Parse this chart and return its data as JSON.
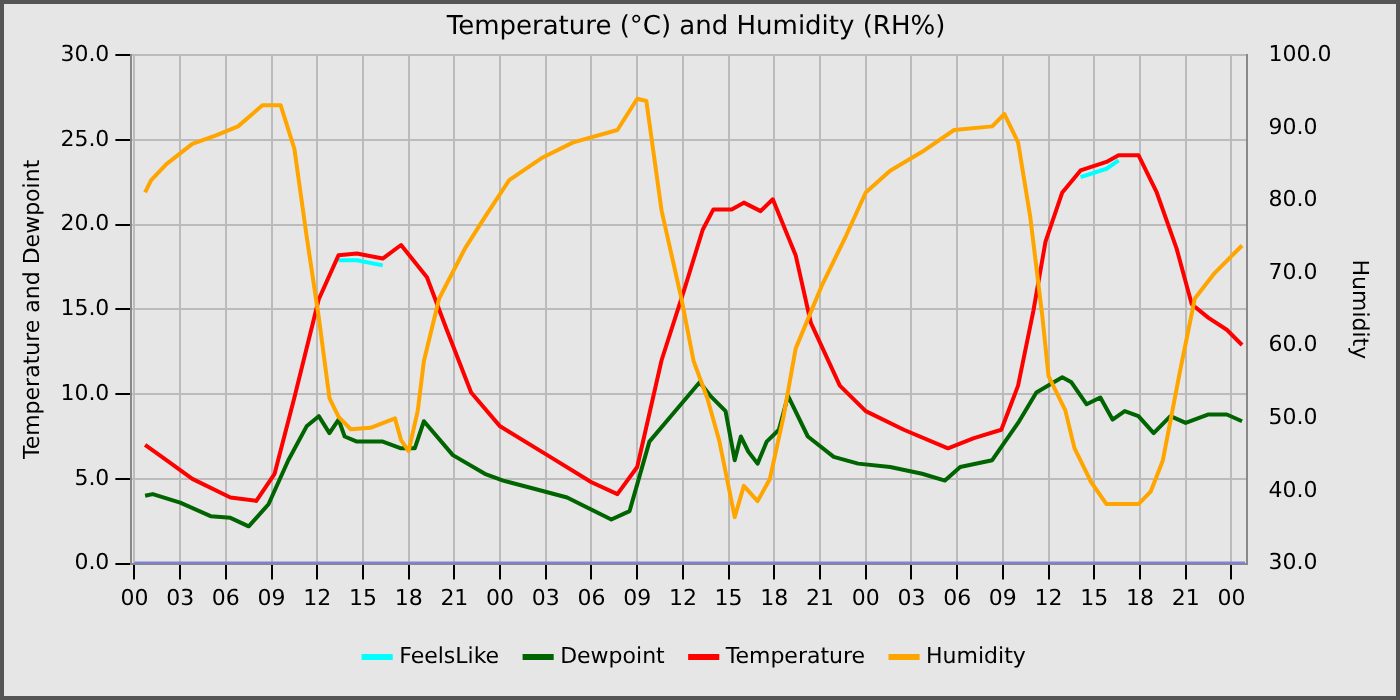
{
  "chart_data": {
    "type": "line",
    "title": "Temperature (°C) and Humidity (RH%)",
    "ylabel": "Temperature and Dewpoint",
    "y2label": "Humidity",
    "xlim": [
      -0.2,
      73
    ],
    "xticks": [
      {
        "value": 0,
        "label": "00"
      },
      {
        "value": 3,
        "label": "03"
      },
      {
        "value": 6,
        "label": "06"
      },
      {
        "value": 9,
        "label": "09"
      },
      {
        "value": 12,
        "label": "12"
      },
      {
        "value": 15,
        "label": "15"
      },
      {
        "value": 18,
        "label": "18"
      },
      {
        "value": 21,
        "label": "21"
      },
      {
        "value": 24,
        "label": "00"
      },
      {
        "value": 27,
        "label": "03"
      },
      {
        "value": 30,
        "label": "06"
      },
      {
        "value": 33,
        "label": "09"
      },
      {
        "value": 36,
        "label": "12"
      },
      {
        "value": 39,
        "label": "15"
      },
      {
        "value": 42,
        "label": "18"
      },
      {
        "value": 45,
        "label": "21"
      },
      {
        "value": 48,
        "label": "00"
      },
      {
        "value": 51,
        "label": "03"
      },
      {
        "value": 54,
        "label": "06"
      },
      {
        "value": 57,
        "label": "09"
      },
      {
        "value": 60,
        "label": "12"
      },
      {
        "value": 63,
        "label": "15"
      },
      {
        "value": 66,
        "label": "18"
      },
      {
        "value": 69,
        "label": "21"
      },
      {
        "value": 72,
        "label": "00"
      }
    ],
    "ylim": [
      0,
      30
    ],
    "yticks": [
      {
        "value": 0,
        "label": "0.0"
      },
      {
        "value": 5,
        "label": "5.0"
      },
      {
        "value": 10,
        "label": "10.0"
      },
      {
        "value": 15,
        "label": "15.0"
      },
      {
        "value": 20,
        "label": "20.0"
      },
      {
        "value": 25,
        "label": "25.0"
      },
      {
        "value": 30,
        "label": "30.0"
      }
    ],
    "y2lim": [
      30,
      100
    ],
    "y2ticks": [
      {
        "value": 30,
        "label": "30.0"
      },
      {
        "value": 40,
        "label": "40.0"
      },
      {
        "value": 50,
        "label": "50.0"
      },
      {
        "value": 60,
        "label": "60.0"
      },
      {
        "value": 70,
        "label": "70.0"
      },
      {
        "value": 80,
        "label": "80.0"
      },
      {
        "value": 90,
        "label": "90.0"
      },
      {
        "value": 100,
        "label": "100.0"
      }
    ],
    "grid": true,
    "legend": "bottom",
    "marker": "none",
    "series": [
      {
        "x": [
          0,
          72.9
        ],
        "values": [
          0,
          0
        ],
        "color": "#8080e0"
      },
      {
        "name": "FeelsLike",
        "color": "#00ffff",
        "x": [
          13.4,
          14.6,
          16.3,
          40,
          62.1,
          63.8,
          64.6
        ],
        "values": [
          17.9,
          17.9,
          17.6,
          null,
          22.8,
          23.3,
          23.8
        ]
      },
      {
        "name": "Dewpoint",
        "color": "#006400",
        "x": [
          0.7,
          1.2,
          3.0,
          5.0,
          6.3,
          7.5,
          8.8,
          10.1,
          11.3,
          12.1,
          12.8,
          13.4,
          13.8,
          14.6,
          16.3,
          17.5,
          18.4,
          19.0,
          20.9,
          23.0,
          24.2,
          26.3,
          28.4,
          31.3,
          32.5,
          33.8,
          35.5,
          37.1,
          37.8,
          38.8,
          39.4,
          39.8,
          40.3,
          40.9,
          41.5,
          42.3,
          42.9,
          44.2,
          45.9,
          47.5,
          49.6,
          51.7,
          53.2,
          54.2,
          56.3,
          58.0,
          59.2,
          60.9,
          61.5,
          62.5,
          63.4,
          64.2,
          65.0,
          65.9,
          66.9,
          68.0,
          69.0,
          70.5,
          71.7,
          72.7
        ],
        "values": [
          4.0,
          4.1,
          3.6,
          2.8,
          2.7,
          2.2,
          3.5,
          6.1,
          8.1,
          8.7,
          7.7,
          8.5,
          7.5,
          7.2,
          7.2,
          6.8,
          6.8,
          8.4,
          6.4,
          5.3,
          4.9,
          4.4,
          3.9,
          2.6,
          3.1,
          7.2,
          9.0,
          10.7,
          9.9,
          9.0,
          6.1,
          7.5,
          6.6,
          5.9,
          7.2,
          7.9,
          9.9,
          7.5,
          6.3,
          5.9,
          5.7,
          5.3,
          4.9,
          5.7,
          6.1,
          8.3,
          10.1,
          11.0,
          10.7,
          9.4,
          9.8,
          8.5,
          9.0,
          8.7,
          7.7,
          8.7,
          8.3,
          8.8,
          8.8,
          8.4
        ]
      },
      {
        "name": "Temperature",
        "color": "#ff0000",
        "x": [
          0.7,
          2.1,
          3.8,
          6.3,
          8.0,
          9.2,
          10.5,
          12.1,
          13.4,
          14.6,
          16.3,
          17.5,
          19.2,
          20.5,
          22.1,
          24.0,
          27.1,
          30.0,
          31.7,
          33.0,
          34.6,
          36.1,
          37.3,
          38.0,
          39.2,
          40.0,
          41.1,
          41.9,
          43.4,
          44.4,
          46.3,
          48.0,
          50.5,
          53.4,
          55.1,
          56.9,
          58.0,
          59.0,
          59.8,
          60.9,
          62.1,
          63.8,
          64.6,
          65.9,
          67.1,
          68.4,
          69.4,
          70.5,
          71.7,
          72.7
        ],
        "values": [
          7.0,
          6.1,
          5.0,
          3.9,
          3.7,
          5.3,
          9.8,
          15.6,
          18.2,
          18.3,
          18.0,
          18.8,
          16.9,
          13.8,
          10.1,
          8.1,
          6.4,
          4.8,
          4.1,
          5.7,
          12.0,
          16.2,
          19.7,
          20.9,
          20.9,
          21.3,
          20.8,
          21.5,
          18.2,
          14.2,
          10.5,
          9.0,
          7.9,
          6.8,
          7.4,
          7.9,
          10.5,
          14.9,
          19.0,
          21.9,
          23.2,
          23.7,
          24.1,
          24.1,
          21.9,
          18.6,
          15.3,
          14.5,
          13.8,
          12.9
        ]
      },
      {
        "name": "Humidity",
        "color": "#ffa500",
        "axis": "y2",
        "x": [
          0.7,
          1.1,
          2.1,
          3.8,
          5.4,
          6.8,
          8.4,
          9.6,
          10.5,
          11.3,
          12.1,
          12.8,
          13.4,
          14.2,
          15.5,
          17.1,
          17.5,
          18.0,
          18.6,
          19.0,
          20.0,
          21.7,
          23.0,
          24.6,
          26.7,
          28.8,
          31.7,
          33.0,
          33.6,
          34.6,
          35.9,
          36.7,
          37.6,
          38.4,
          39.4,
          40.0,
          40.9,
          41.7,
          42.6,
          43.4,
          45.1,
          46.7,
          48.0,
          49.6,
          51.7,
          53.8,
          56.3,
          57.1,
          58.0,
          58.8,
          59.6,
          60.0,
          61.1,
          61.7,
          62.8,
          63.8,
          65.9,
          66.7,
          67.5,
          68.6,
          69.6,
          70.9,
          72.7
        ],
        "values": [
          81.1,
          82.8,
          85.0,
          87.8,
          89.0,
          90.2,
          93.1,
          93.1,
          87.1,
          75.1,
          63.9,
          52.8,
          50.2,
          48.5,
          48.7,
          50.0,
          47.0,
          45.5,
          51.1,
          57.9,
          66.5,
          73.4,
          77.7,
          82.8,
          85.8,
          88.0,
          89.7,
          94.0,
          93.7,
          78.6,
          66.5,
          57.9,
          52.8,
          46.8,
          36.4,
          40.7,
          38.6,
          41.6,
          50.2,
          59.6,
          68.2,
          75.1,
          81.1,
          84.1,
          86.7,
          89.7,
          90.2,
          91.9,
          88.0,
          77.7,
          63.9,
          55.8,
          51.1,
          45.9,
          41.2,
          38.2,
          38.2,
          39.9,
          44.2,
          56.2,
          66.5,
          70.0,
          73.8
        ]
      }
    ]
  }
}
